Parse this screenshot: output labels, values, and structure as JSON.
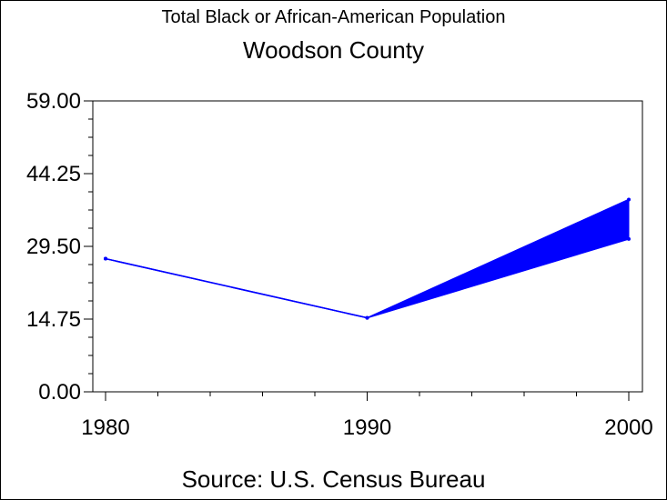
{
  "chart_data": {
    "type": "line",
    "title": "Total Black or African-American Population",
    "subtitle": "Woodson County",
    "footnote": "Source: U.S. Census Bureau",
    "x": [
      1980,
      1990,
      2000
    ],
    "xlim": [
      1980,
      2000
    ],
    "x_ticks": [
      "1980",
      "1990",
      "2000"
    ],
    "ylim": [
      0,
      59
    ],
    "y_ticks": [
      "0.00",
      "14.75",
      "29.50",
      "44.25",
      "59.00"
    ],
    "series": [
      {
        "values": [
          27,
          15,
          39
        ]
      },
      {
        "values": [
          27,
          15,
          31
        ]
      }
    ],
    "band_between_series_after": 1990,
    "line_color": "#0000ff",
    "grid": false,
    "legend": "none"
  }
}
